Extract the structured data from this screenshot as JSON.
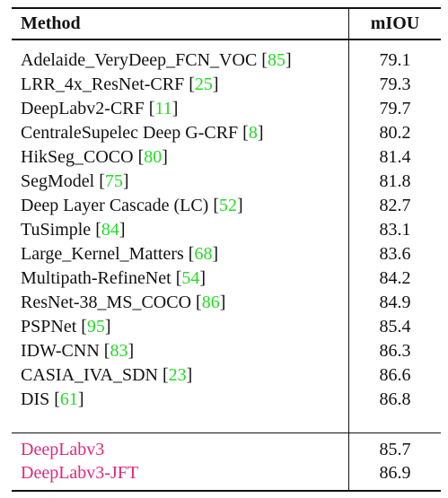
{
  "header": {
    "method": "Method",
    "miou": "mIOU"
  },
  "rows": [
    {
      "name": "Adelaide_VeryDeep_FCN_VOC",
      "cite": "85",
      "miou": "79.1"
    },
    {
      "name": "LRR_4x_ResNet-CRF",
      "cite": "25",
      "miou": "79.3"
    },
    {
      "name": "DeepLabv2-CRF",
      "cite": "11",
      "miou": "79.7"
    },
    {
      "name": "CentraleSupelec Deep G-CRF",
      "cite": "8",
      "miou": "80.2"
    },
    {
      "name": "HikSeg_COCO",
      "cite": "80",
      "miou": "81.4"
    },
    {
      "name": "SegModel",
      "cite": "75",
      "miou": "81.8"
    },
    {
      "name": "Deep Layer Cascade (LC)",
      "cite": "52",
      "miou": "82.7"
    },
    {
      "name": "TuSimple",
      "cite": "84",
      "miou": "83.1"
    },
    {
      "name": "Large_Kernel_Matters",
      "cite": "68",
      "miou": "83.6"
    },
    {
      "name": "Multipath-RefineNet",
      "cite": "54",
      "miou": "84.2"
    },
    {
      "name": "ResNet-38_MS_COCO",
      "cite": "86",
      "miou": "84.9"
    },
    {
      "name": "PSPNet",
      "cite": "95",
      "miou": "85.4"
    },
    {
      "name": "IDW-CNN",
      "cite": "83",
      "miou": "86.3"
    },
    {
      "name": "CASIA_IVA_SDN",
      "cite": "23",
      "miou": "86.6"
    },
    {
      "name": "DIS",
      "cite": "61",
      "miou": "86.8"
    }
  ],
  "ours": [
    {
      "name": "DeepLabv3",
      "miou": "85.7"
    },
    {
      "name": "DeepLabv3-JFT",
      "miou": "86.9"
    }
  ],
  "colors": {
    "citation": "#22dd22",
    "ours": "#e0287e"
  }
}
